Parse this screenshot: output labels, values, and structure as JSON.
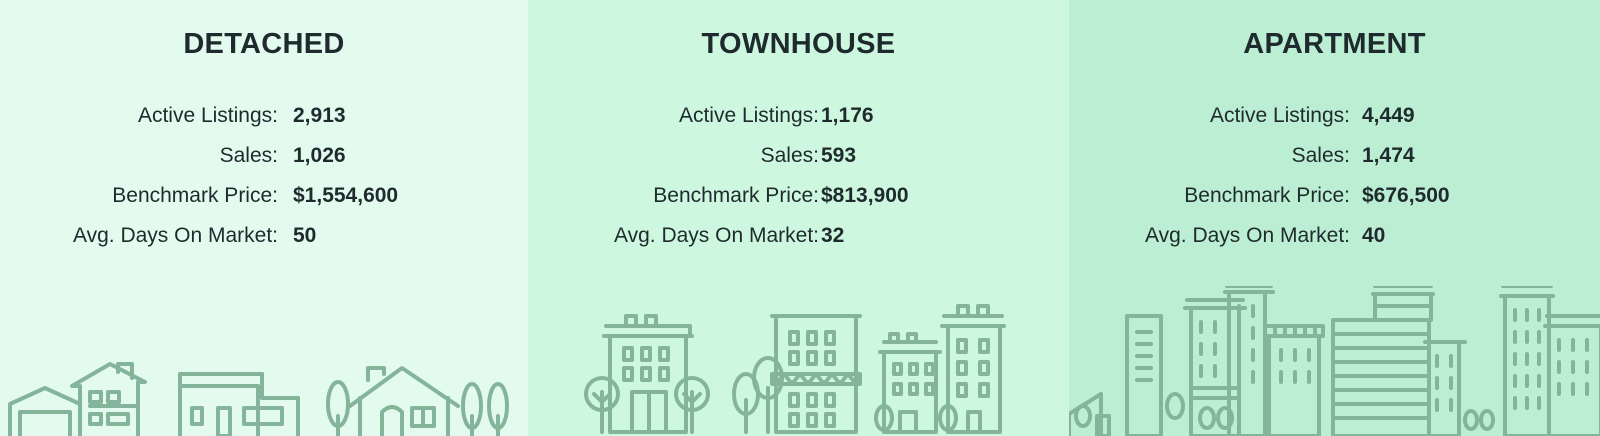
{
  "panels": [
    {
      "title": "DETACHED",
      "stats": [
        {
          "label": "Active Listings:",
          "value": "2,913"
        },
        {
          "label": "Sales:",
          "value": "1,026"
        },
        {
          "label": "Benchmark Price:",
          "value": "$1,554,600"
        },
        {
          "label": "Avg. Days On Market:",
          "value": "50"
        }
      ],
      "illustration_icon": "detached-houses-icon",
      "background": "#e3fbee"
    },
    {
      "title": "TOWNHOUSE",
      "stats": [
        {
          "label": "Active Listings:",
          "value": "1,176"
        },
        {
          "label": "Sales:",
          "value": "593"
        },
        {
          "label": "Benchmark Price:",
          "value": "$813,900"
        },
        {
          "label": "Avg. Days On Market:",
          "value": "32"
        }
      ],
      "illustration_icon": "townhouse-buildings-icon",
      "background": "#cdf8df"
    },
    {
      "title": "APARTMENT",
      "stats": [
        {
          "label": "Active Listings:",
          "value": "4,449"
        },
        {
          "label": "Sales:",
          "value": "1,474"
        },
        {
          "label": "Benchmark Price:",
          "value": "$676,500"
        },
        {
          "label": "Avg. Days On Market:",
          "value": "40"
        }
      ],
      "illustration_icon": "apartment-skyline-icon",
      "background": "#bbeed2"
    }
  ],
  "colors": {
    "text": "#1f2a2e",
    "illustration_stroke": "#84b59a"
  }
}
